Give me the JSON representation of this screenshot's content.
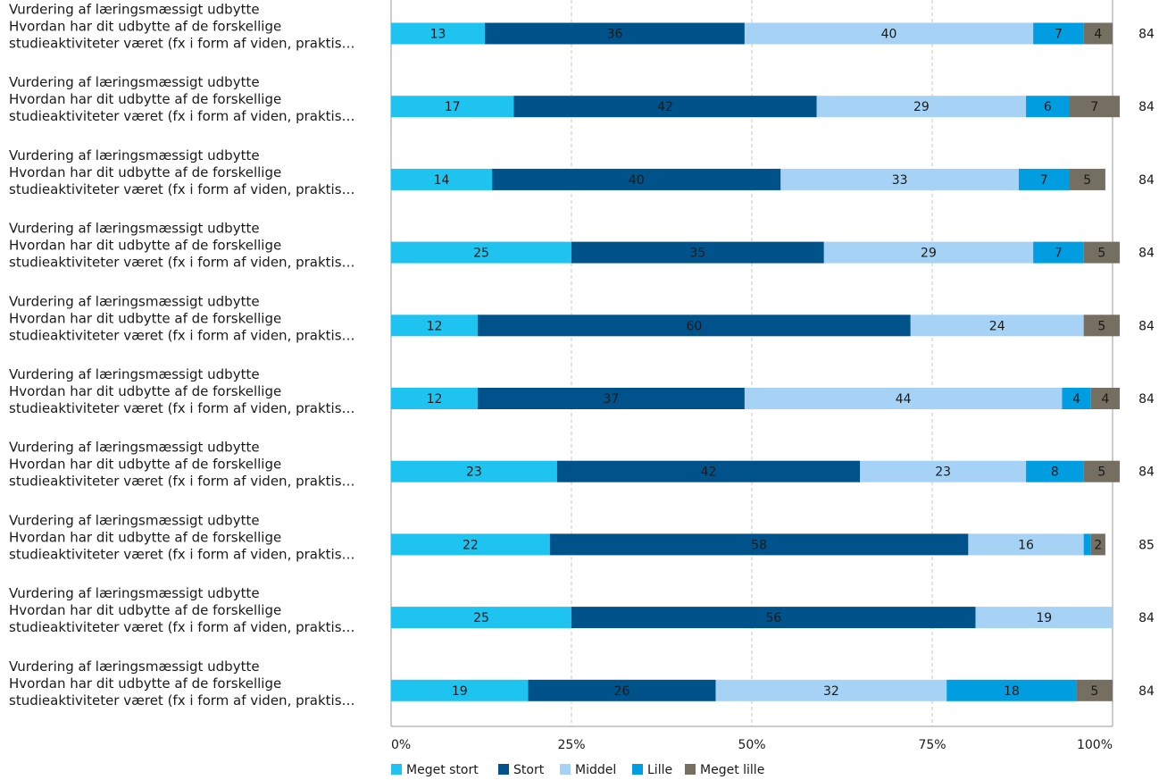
{
  "chart_data": {
    "type": "bar",
    "orientation": "horizontal",
    "stacked": true,
    "categories": [
      [
        "Vurdering af læringsmæssigt udbytte",
        "Hvordan har dit udbytte af de forskellige",
        "studieaktiviteter været (fx i form af viden, praktis…"
      ],
      [
        "Vurdering af læringsmæssigt udbytte",
        "Hvordan har dit udbytte af de forskellige",
        "studieaktiviteter været (fx i form af viden, praktis…"
      ],
      [
        "Vurdering af læringsmæssigt udbytte",
        "Hvordan har dit udbytte af de forskellige",
        "studieaktiviteter været (fx i form af viden, praktis…"
      ],
      [
        "Vurdering af læringsmæssigt udbytte",
        "Hvordan har dit udbytte af de forskellige",
        "studieaktiviteter været (fx i form af viden, praktis…"
      ],
      [
        "Vurdering af læringsmæssigt udbytte",
        "Hvordan har dit udbytte af de forskellige",
        "studieaktiviteter været (fx i form af viden, praktis…"
      ],
      [
        "Vurdering af læringsmæssigt udbytte",
        "Hvordan har dit udbytte af de forskellige",
        "studieaktiviteter været (fx i form af viden, praktis…"
      ],
      [
        "Vurdering af læringsmæssigt udbytte",
        "Hvordan har dit udbytte af de forskellige",
        "studieaktiviteter været (fx i form af viden, praktis…"
      ],
      [
        "Vurdering af læringsmæssigt udbytte",
        "Hvordan har dit udbytte af de forskellige",
        "studieaktiviteter været (fx i form af viden, praktis…"
      ],
      [
        "Vurdering af læringsmæssigt udbytte",
        "Hvordan har dit udbytte af de forskellige",
        "studieaktiviteter været (fx i form af viden, praktis…"
      ],
      [
        "Vurdering af læringsmæssigt udbytte",
        "Hvordan har dit udbytte af de forskellige",
        "studieaktiviteter været (fx i form af viden, praktis…"
      ]
    ],
    "series": [
      {
        "name": "Meget stort",
        "color": "#1ec3f0",
        "values": [
          13,
          17,
          14,
          25,
          12,
          12,
          23,
          22,
          25,
          19
        ]
      },
      {
        "name": "Stort",
        "color": "#00538a",
        "values": [
          36,
          42,
          40,
          35,
          60,
          37,
          42,
          58,
          56,
          26
        ]
      },
      {
        "name": "Middel",
        "color": "#a6d3f5",
        "values": [
          40,
          29,
          33,
          29,
          24,
          44,
          23,
          16,
          19,
          32
        ]
      },
      {
        "name": "Lille",
        "color": "#009ee0",
        "values": [
          7,
          6,
          7,
          7,
          0,
          4,
          8,
          1,
          0,
          18
        ]
      },
      {
        "name": "Meget lille",
        "color": "#756f61",
        "values": [
          4,
          7,
          5,
          5,
          5,
          4,
          5,
          2,
          0,
          5
        ]
      }
    ],
    "n_values": [
      "84",
      "84",
      "84",
      "84",
      "84",
      "84",
      "84",
      "85",
      "84",
      "84"
    ],
    "x_ticks": [
      "0%",
      "25%",
      "50%",
      "75%",
      "100%"
    ],
    "xlim": [
      0,
      100
    ],
    "grid": true,
    "legend_position": "bottom-left"
  }
}
